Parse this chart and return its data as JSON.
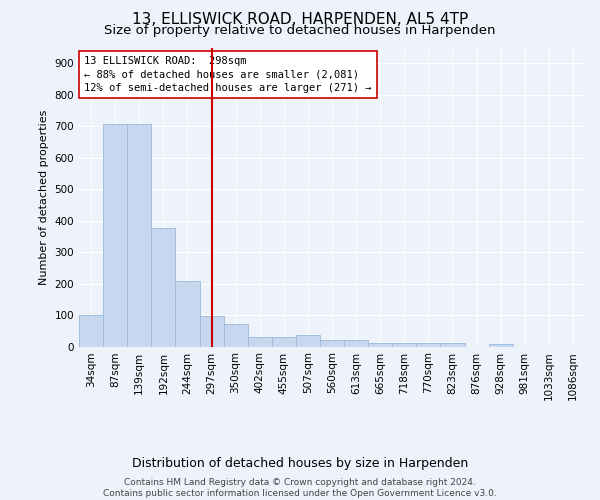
{
  "title": "13, ELLISWICK ROAD, HARPENDEN, AL5 4TP",
  "subtitle": "Size of property relative to detached houses in Harpenden",
  "xlabel": "Distribution of detached houses by size in Harpenden",
  "ylabel": "Number of detached properties",
  "categories": [
    "34sqm",
    "87sqm",
    "139sqm",
    "192sqm",
    "244sqm",
    "297sqm",
    "350sqm",
    "402sqm",
    "455sqm",
    "507sqm",
    "560sqm",
    "613sqm",
    "665sqm",
    "718sqm",
    "770sqm",
    "823sqm",
    "876sqm",
    "928sqm",
    "981sqm",
    "1033sqm",
    "1086sqm"
  ],
  "values": [
    100,
    707,
    707,
    375,
    207,
    97,
    72,
    30,
    30,
    35,
    20,
    20,
    10,
    10,
    10,
    10,
    0,
    8,
    0,
    0,
    0
  ],
  "bar_color": "#c5d8f0",
  "bar_edge_color": "#9ab8d8",
  "vline_x_index": 5,
  "vline_color": "#cc0000",
  "annotation_text_line1": "13 ELLISWICK ROAD:  298sqm",
  "annotation_text_line2": "← 88% of detached houses are smaller (2,081)",
  "annotation_text_line3": "12% of semi-detached houses are larger (271) →",
  "annotation_box_color": "#ffffff",
  "annotation_box_edge": "#cc0000",
  "ylim": [
    0,
    950
  ],
  "yticks": [
    0,
    100,
    200,
    300,
    400,
    500,
    600,
    700,
    800,
    900
  ],
  "footer": "Contains HM Land Registry data © Crown copyright and database right 2024.\nContains public sector information licensed under the Open Government Licence v3.0.",
  "title_fontsize": 11,
  "subtitle_fontsize": 9.5,
  "xlabel_fontsize": 9,
  "ylabel_fontsize": 8,
  "tick_fontsize": 7.5,
  "annotation_fontsize": 7.5,
  "footer_fontsize": 6.5,
  "background_color": "#eef2fa",
  "plot_bg_color": "#eef2fa"
}
